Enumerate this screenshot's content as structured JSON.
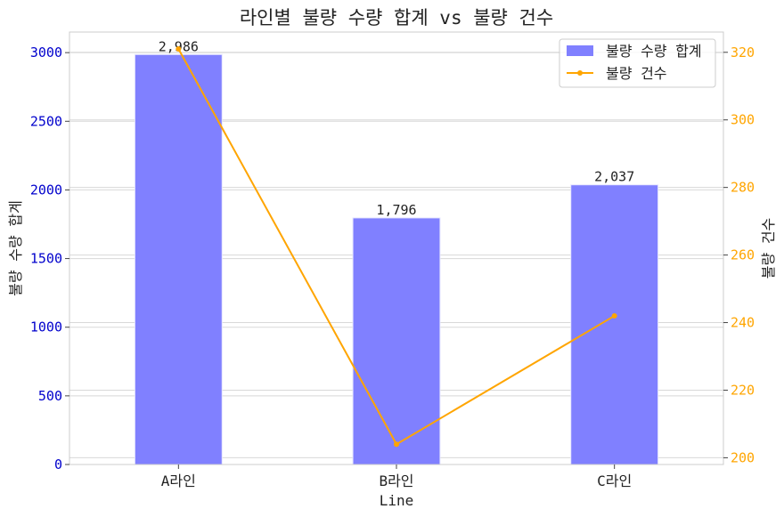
{
  "chart_data": {
    "type": "bar",
    "title": "라인별 불량 수량 합계 vs 불량 건수",
    "xlabel": "Line",
    "categories": [
      "A라인",
      "B라인",
      "C라인"
    ],
    "series": [
      {
        "name": "불량 수량 합계",
        "type": "bar",
        "axis": "left",
        "values": [
          2986,
          1796,
          2037
        ],
        "value_labels": [
          "2,986",
          "1,796",
          "2,037"
        ],
        "color": "#8080ff"
      },
      {
        "name": "불량 건수",
        "type": "line",
        "axis": "right",
        "values": [
          321,
          204,
          242
        ],
        "color": "#ffa500"
      }
    ],
    "y_left": {
      "label": "불량 수량 합계",
      "lim": [
        0,
        3150
      ],
      "ticks": [
        0,
        500,
        1000,
        1500,
        2000,
        2500,
        3000
      ],
      "color": "#0000cc"
    },
    "y_right": {
      "label": "불량 건수",
      "lim": [
        198,
        326
      ],
      "ticks": [
        200,
        220,
        240,
        260,
        280,
        300,
        320
      ],
      "color": "#ffa500"
    },
    "grid": true,
    "legend": "top-right"
  }
}
